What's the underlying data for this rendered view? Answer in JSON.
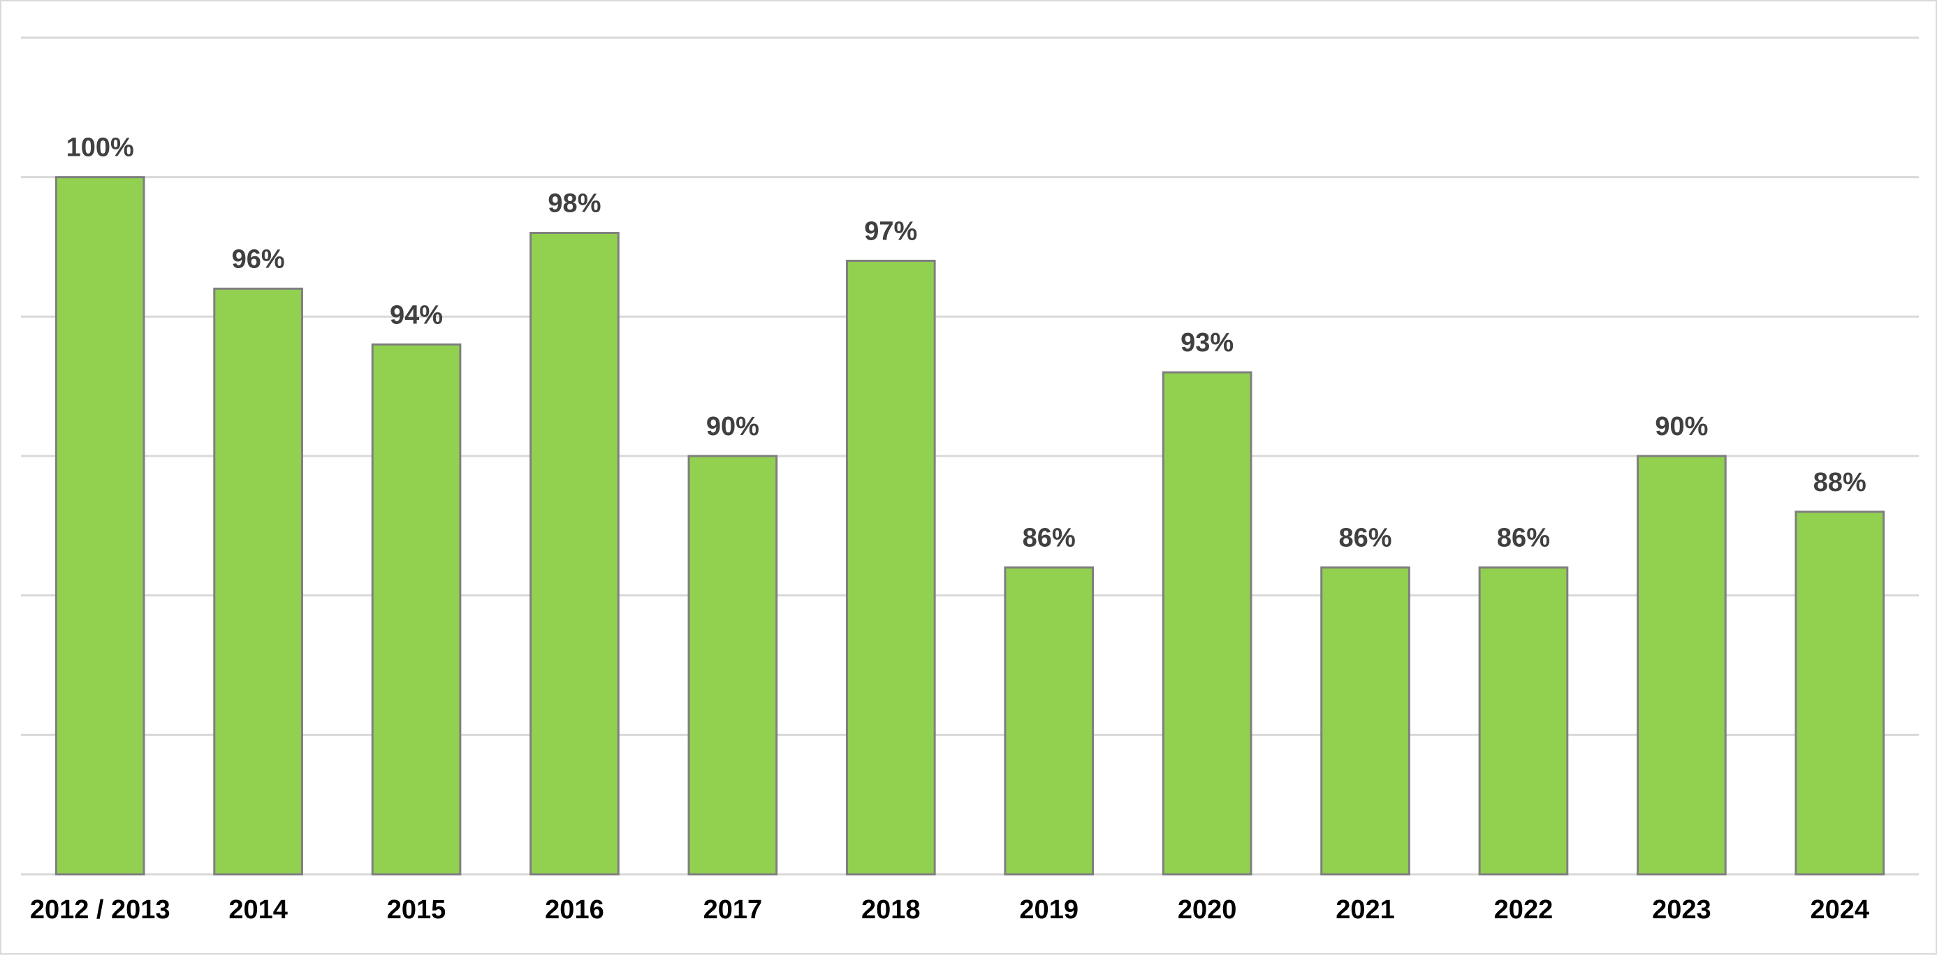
{
  "chart_data": {
    "type": "bar",
    "title": "",
    "xlabel": "",
    "ylabel": "",
    "categories": [
      "2012 / 2013",
      "2014",
      "2015",
      "2016",
      "2017",
      "2018",
      "2019",
      "2020",
      "2021",
      "2022",
      "2023",
      "2024"
    ],
    "values": [
      100,
      96,
      94,
      98,
      90,
      97,
      86,
      93,
      86,
      86,
      90,
      88
    ],
    "data_labels": [
      "100%",
      "96%",
      "94%",
      "98%",
      "90%",
      "97%",
      "86%",
      "93%",
      "86%",
      "86%",
      "90%",
      "88%"
    ],
    "ylim": [
      75,
      105
    ],
    "y_gridlines": [
      75,
      80,
      85,
      90,
      95,
      100,
      105
    ],
    "grid": true,
    "legend": "none",
    "bar_color": "#92d050",
    "bar_edge_color": "#7f7f7f",
    "gridline_color": "#d9d9d9",
    "label_color": "#404040",
    "tick_color": "#000000"
  }
}
